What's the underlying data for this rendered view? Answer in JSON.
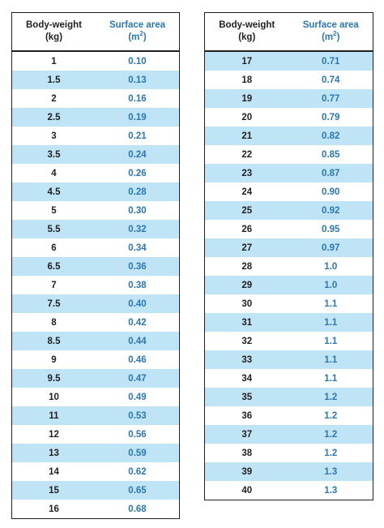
{
  "headers": {
    "weight_line1": "Body-weight",
    "weight_line2": "(kg)",
    "area_line1": "Surface area",
    "area_unit_pre": "(m",
    "area_unit_sup": "2",
    "area_unit_post": ")"
  },
  "colors": {
    "stripe": "#bfe4f6",
    "area_text": "#2b77ae",
    "weight_text": "#231f20"
  },
  "left_table": [
    {
      "weight": "1",
      "area": "0.10"
    },
    {
      "weight": "1.5",
      "area": "0.13"
    },
    {
      "weight": "2",
      "area": "0.16"
    },
    {
      "weight": "2.5",
      "area": "0.19"
    },
    {
      "weight": "3",
      "area": "0.21"
    },
    {
      "weight": "3.5",
      "area": "0.24"
    },
    {
      "weight": "4",
      "area": "0.26"
    },
    {
      "weight": "4.5",
      "area": "0.28"
    },
    {
      "weight": "5",
      "area": "0.30"
    },
    {
      "weight": "5.5",
      "area": "0.32"
    },
    {
      "weight": "6",
      "area": "0.34"
    },
    {
      "weight": "6.5",
      "area": "0.36"
    },
    {
      "weight": "7",
      "area": "0.38"
    },
    {
      "weight": "7.5",
      "area": "0.40"
    },
    {
      "weight": "8",
      "area": "0.42"
    },
    {
      "weight": "8.5",
      "area": "0.44"
    },
    {
      "weight": "9",
      "area": "0.46"
    },
    {
      "weight": "9.5",
      "area": "0.47"
    },
    {
      "weight": "10",
      "area": "0.49"
    },
    {
      "weight": "11",
      "area": "0.53"
    },
    {
      "weight": "12",
      "area": "0.56"
    },
    {
      "weight": "13",
      "area": "0.59"
    },
    {
      "weight": "14",
      "area": "0.62"
    },
    {
      "weight": "15",
      "area": "0.65"
    },
    {
      "weight": "16",
      "area": "0.68"
    }
  ],
  "right_table": [
    {
      "weight": "17",
      "area": "0.71"
    },
    {
      "weight": "18",
      "area": "0.74"
    },
    {
      "weight": "19",
      "area": "0.77"
    },
    {
      "weight": "20",
      "area": "0.79"
    },
    {
      "weight": "21",
      "area": "0.82"
    },
    {
      "weight": "22",
      "area": "0.85"
    },
    {
      "weight": "23",
      "area": "0.87"
    },
    {
      "weight": "24",
      "area": "0.90"
    },
    {
      "weight": "25",
      "area": "0.92"
    },
    {
      "weight": "26",
      "area": "0.95"
    },
    {
      "weight": "27",
      "area": "0.97"
    },
    {
      "weight": "28",
      "area": "1.0"
    },
    {
      "weight": "29",
      "area": "1.0"
    },
    {
      "weight": "30",
      "area": "1.1"
    },
    {
      "weight": "31",
      "area": "1.1"
    },
    {
      "weight": "32",
      "area": "1.1"
    },
    {
      "weight": "33",
      "area": "1.1"
    },
    {
      "weight": "34",
      "area": "1.1"
    },
    {
      "weight": "35",
      "area": "1.2"
    },
    {
      "weight": "36",
      "area": "1.2"
    },
    {
      "weight": "37",
      "area": "1.2"
    },
    {
      "weight": "38",
      "area": "1.2"
    },
    {
      "weight": "39",
      "area": "1.3"
    },
    {
      "weight": "40",
      "area": "1.3"
    }
  ]
}
